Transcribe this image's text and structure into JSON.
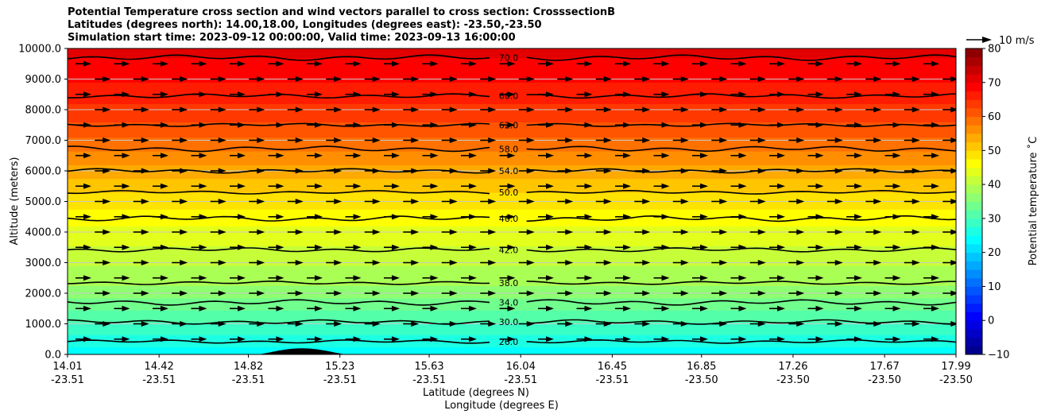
{
  "chart_data": {
    "type": "contour",
    "title_lines": [
      "Potential Temperature cross section and wind vectors parallel to cross section: CrosssectionB",
      "Latitudes (degrees north): 14.00,18.00, Longitudes (degrees east): -23.50,-23.50",
      "Simulation start time: 2023-09-12 00:00:00, Valid time: 2023-09-13 16:00:00"
    ],
    "ylabel": "Altitude (meters)",
    "xlabel_line1": "Latitude (degrees N)",
    "xlabel_line2": "Longitude (degrees E)",
    "ylim": [
      0,
      10000
    ],
    "xlim": [
      14.01,
      17.99
    ],
    "yticks": [
      "0.0",
      "1000.0",
      "2000.0",
      "3000.0",
      "4000.0",
      "5000.0",
      "6000.0",
      "7000.0",
      "8000.0",
      "9000.0",
      "10000.0"
    ],
    "ytick_values": [
      0,
      1000,
      2000,
      3000,
      4000,
      5000,
      6000,
      7000,
      8000,
      9000,
      10000
    ],
    "xticks": [
      {
        "lat": "14.01",
        "lon": "-23.51"
      },
      {
        "lat": "14.42",
        "lon": "-23.51"
      },
      {
        "lat": "14.82",
        "lon": "-23.51"
      },
      {
        "lat": "15.23",
        "lon": "-23.51"
      },
      {
        "lat": "15.63",
        "lon": "-23.51"
      },
      {
        "lat": "16.04",
        "lon": "-23.51"
      },
      {
        "lat": "16.45",
        "lon": "-23.51"
      },
      {
        "lat": "16.85",
        "lon": "-23.50"
      },
      {
        "lat": "17.26",
        "lon": "-23.50"
      },
      {
        "lat": "17.67",
        "lon": "-23.50"
      },
      {
        "lat": "17.99",
        "lon": "-23.50"
      }
    ],
    "xtick_values": [
      14.01,
      14.42,
      14.82,
      15.23,
      15.63,
      16.04,
      16.45,
      16.85,
      17.26,
      17.67,
      17.99
    ],
    "grid": "horizontal",
    "colorbar": {
      "label": "Potential temperature $^\\circ$C",
      "label_display": "Potential temperature ˚C",
      "range": [
        -10,
        80
      ],
      "ticks": [
        "−10",
        "0",
        "10",
        "20",
        "30",
        "40",
        "50",
        "60",
        "70",
        "80"
      ],
      "tick_values": [
        -10,
        0,
        10,
        20,
        30,
        40,
        50,
        60,
        70,
        80
      ],
      "colormap": "jet"
    },
    "contours": [
      {
        "label": "26.0",
        "altitude_m": 420
      },
      {
        "label": "30.0",
        "altitude_m": 1060
      },
      {
        "label": "34.0",
        "altitude_m": 1700
      },
      {
        "label": "38.0",
        "altitude_m": 2340
      },
      {
        "label": "42.0",
        "altitude_m": 3420
      },
      {
        "label": "46.0",
        "altitude_m": 4440
      },
      {
        "label": "50.0",
        "altitude_m": 5300
      },
      {
        "label": "54.0",
        "altitude_m": 6000
      },
      {
        "label": "58.0",
        "altitude_m": 6720
      },
      {
        "label": "62.0",
        "altitude_m": 7500
      },
      {
        "label": "66.0",
        "altitude_m": 8450
      },
      {
        "label": "70.0",
        "altitude_m": 9700
      }
    ],
    "terrain_peak_m": 200,
    "wind_key_label": "10 m/s",
    "wind_rows_m": [
      500,
      1000,
      1500,
      2000,
      2500,
      3000,
      3500,
      4000,
      4500,
      5000,
      5500,
      6000,
      6500,
      7000,
      7500,
      8000,
      8500,
      9000,
      9500
    ],
    "wind_direction": "parallel, pointing north (right)"
  }
}
